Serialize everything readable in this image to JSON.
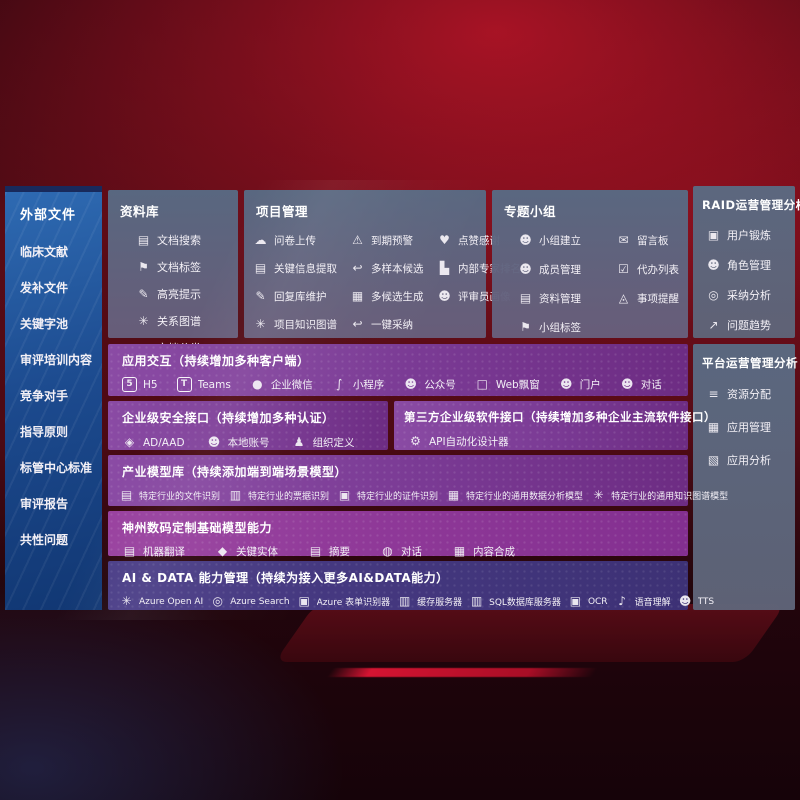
{
  "colors": {
    "background_red": "#8a0f1e",
    "sidebar_blue": "#1f4f95",
    "panel_gray": "#61657c",
    "band_purple": "#7c3a94",
    "band_indigo": "#44387e",
    "text": "#ffffff"
  },
  "sidebar": {
    "title": "外部文件",
    "items": [
      {
        "label": "临床文献"
      },
      {
        "label": "发补文件"
      },
      {
        "label": "关键字池"
      },
      {
        "label": "审评培训内容"
      },
      {
        "label": "竞争对手"
      },
      {
        "label": "指导原则"
      },
      {
        "label": "标管中心标准"
      },
      {
        "label": "审评报告"
      },
      {
        "label": "共性问题"
      }
    ]
  },
  "panels": {
    "library": {
      "title": "资料库",
      "items": [
        {
          "label": "文档搜索",
          "icon": "doc-search-icon",
          "glyph": "▤"
        },
        {
          "label": "文档标签",
          "icon": "doc-tag-icon",
          "glyph": "⚑"
        },
        {
          "label": "高亮提示",
          "icon": "highlight-pen-icon",
          "glyph": "✎"
        },
        {
          "label": "关系图谱",
          "icon": "relation-graph-icon",
          "glyph": "✳"
        },
        {
          "label": "文档分类",
          "icon": "doc-classify-icon",
          "glyph": "▥"
        }
      ]
    },
    "project": {
      "title": "项目管理",
      "items": [
        {
          "label": "问卷上传",
          "icon": "cloud-upload-icon",
          "glyph": "☁"
        },
        {
          "label": "到期预警",
          "icon": "alarm-warning-icon",
          "glyph": "⚠"
        },
        {
          "label": "点赞感谢",
          "icon": "thumbs-up-icon",
          "glyph": "♥"
        },
        {
          "label": "关键信息提取",
          "icon": "info-extract-icon",
          "glyph": "▤"
        },
        {
          "label": "多样本候选",
          "icon": "multi-sample-icon",
          "glyph": "↩"
        },
        {
          "label": "内部专家排名",
          "icon": "expert-ranking-icon",
          "glyph": "▙"
        },
        {
          "label": "回复库维护",
          "icon": "reply-maintain-icon",
          "glyph": "✎"
        },
        {
          "label": "多候选生成",
          "icon": "multi-candidate-icon",
          "glyph": "▦"
        },
        {
          "label": "评审员画像",
          "icon": "reviewer-portrait-icon",
          "glyph": "☻"
        },
        {
          "label": "项目知识图谱",
          "icon": "knowledge-graph-icon",
          "glyph": "✳"
        },
        {
          "label": "一键采纳",
          "icon": "one-click-adopt-icon",
          "glyph": "↩"
        }
      ]
    },
    "group": {
      "title": "专题小组",
      "items": [
        {
          "label": "小组建立",
          "icon": "team-create-icon",
          "glyph": "☻"
        },
        {
          "label": "留言板",
          "icon": "message-board-icon",
          "glyph": "✉"
        },
        {
          "label": "成员管理",
          "icon": "member-manage-icon",
          "glyph": "☻"
        },
        {
          "label": "代办列表",
          "icon": "todo-list-icon",
          "glyph": "☑"
        },
        {
          "label": "资料管理",
          "icon": "material-manage-icon",
          "glyph": "▤"
        },
        {
          "label": "事项提醒",
          "icon": "reminder-bell-icon",
          "glyph": "◬"
        },
        {
          "label": "小组标签",
          "icon": "group-tag-icon",
          "glyph": "⚑"
        }
      ]
    },
    "raid": {
      "title": "RAID运营管理分析",
      "items": [
        {
          "label": "用户锻炼",
          "icon": "user-card-icon",
          "glyph": "▣"
        },
        {
          "label": "角色管理",
          "icon": "role-manage-icon",
          "glyph": "☻"
        },
        {
          "label": "采纳分析",
          "icon": "adoption-analysis-icon",
          "glyph": "◎"
        },
        {
          "label": "问题趋势",
          "icon": "trend-chart-icon",
          "glyph": "↗"
        }
      ]
    },
    "platform": {
      "title": "平台运营管理分析",
      "items": [
        {
          "label": "资源分配",
          "icon": "resource-allocation-icon",
          "glyph": "≡"
        },
        {
          "label": "应用管理",
          "icon": "app-manage-icon",
          "glyph": "▦"
        },
        {
          "label": "应用分析",
          "icon": "app-analysis-icon",
          "glyph": "▧"
        }
      ]
    }
  },
  "bands": {
    "interaction": {
      "title": "应用交互（持续增加多种客户端）",
      "items": [
        {
          "label": "H5",
          "icon": "h5-icon",
          "glyph": "5",
          "box": true
        },
        {
          "label": "Teams",
          "icon": "teams-icon",
          "glyph": "T",
          "box": true
        },
        {
          "label": "企业微信",
          "icon": "wechat-work-icon",
          "glyph": "●"
        },
        {
          "label": "小程序",
          "icon": "miniprogram-icon",
          "glyph": "∫"
        },
        {
          "label": "公众号",
          "icon": "official-account-icon",
          "glyph": "☻"
        },
        {
          "label": "Web飘窗",
          "icon": "web-popup-icon",
          "glyph": "□"
        },
        {
          "label": "门户",
          "icon": "portal-user-icon",
          "glyph": "☻"
        },
        {
          "label": "对话",
          "icon": "chat-people-icon",
          "glyph": "☻"
        }
      ]
    },
    "security": {
      "title": "企业级安全接口（持续增加多种认证）",
      "items": [
        {
          "label": "AD/AAD",
          "icon": "ad-aad-icon",
          "glyph": "◈"
        },
        {
          "label": "本地账号",
          "icon": "local-account-icon",
          "glyph": "☻"
        },
        {
          "label": "组织定义",
          "icon": "org-define-icon",
          "glyph": "♟"
        }
      ]
    },
    "third_party": {
      "title": "第三方企业级软件接口（持续增加多种企业主流软件接口）",
      "items": [
        {
          "label": "API自动化设计器",
          "icon": "api-designer-gear-icon",
          "glyph": "⚙"
        }
      ]
    },
    "industry": {
      "title": "产业模型库（持续添加端到端场景模型）",
      "items": [
        {
          "label": "特定行业的文件识别",
          "icon": "file-recognition-icon",
          "glyph": "▤"
        },
        {
          "label": "特定行业的票据识别",
          "icon": "receipt-recognition-icon",
          "glyph": "▥"
        },
        {
          "label": "特定行业的证件识别",
          "icon": "certificate-recognition-icon",
          "glyph": "▣"
        },
        {
          "label": "特定行业的通用数据分析模型",
          "icon": "data-analysis-model-icon",
          "glyph": "▦"
        },
        {
          "label": "特定行业的通用知识图谱模型",
          "icon": "knowledge-graph-model-icon",
          "glyph": "✳"
        }
      ]
    },
    "digital": {
      "title": "神州数码定制基础模型能力",
      "items": [
        {
          "label": "机器翻译",
          "icon": "machine-translate-icon",
          "glyph": "▤"
        },
        {
          "label": "关键实体",
          "icon": "key-entity-shield-icon",
          "glyph": "◆"
        },
        {
          "label": "摘要",
          "icon": "summary-doc-icon",
          "glyph": "▤"
        },
        {
          "label": "对话",
          "icon": "dialog-bubble-icon",
          "glyph": "◍"
        },
        {
          "label": "内容合成",
          "icon": "content-compose-icon",
          "glyph": "▦"
        }
      ]
    },
    "aidata": {
      "title": "AI & DATA 能力管理（持续为接入更多AI&DATA能力）",
      "items": [
        {
          "label": "Azure Open AI",
          "icon": "azure-openai-icon",
          "glyph": "✳"
        },
        {
          "label": "Azure Search",
          "icon": "azure-search-icon",
          "glyph": "◎"
        },
        {
          "label": "Azure 表单识别器",
          "icon": "azure-form-recognizer-icon",
          "glyph": "▣"
        },
        {
          "label": "缓存服务器",
          "icon": "cache-server-icon",
          "glyph": "▥"
        },
        {
          "label": "SQL数据库服务器",
          "icon": "sql-server-icon",
          "glyph": "▥"
        },
        {
          "label": "OCR",
          "icon": "ocr-icon",
          "glyph": "▣"
        },
        {
          "label": "语音理解",
          "icon": "speech-understanding-icon",
          "glyph": "♪"
        },
        {
          "label": "TTS",
          "icon": "tts-icon",
          "glyph": "☻"
        }
      ]
    }
  }
}
